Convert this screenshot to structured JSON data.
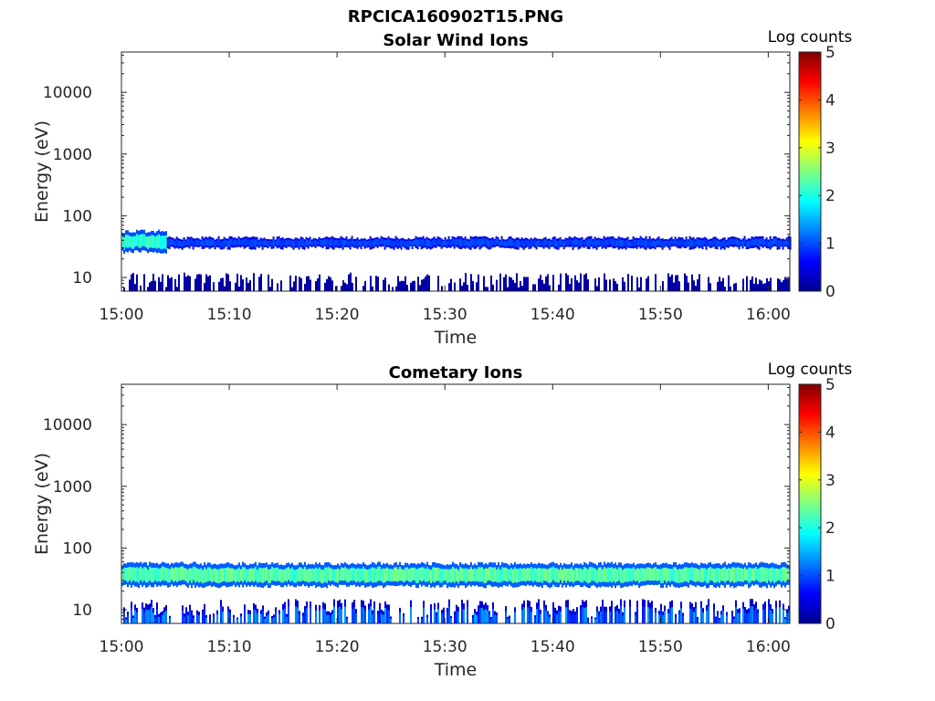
{
  "figure_title": "RPCICA160902T15.PNG",
  "chart_data": [
    {
      "type": "heatmap",
      "title": "Solar Wind Ions",
      "xlabel": "Time",
      "ylabel": "Energy (eV)",
      "x_ticks": [
        "15:00",
        "15:10",
        "15:20",
        "15:30",
        "15:40",
        "15:50",
        "16:00"
      ],
      "xlim_minutes": [
        0,
        62
      ],
      "y_scale": "log",
      "ylim": [
        6,
        45000
      ],
      "y_ticks": [
        {
          "value": 10,
          "label": "10"
        },
        {
          "value": 100,
          "label": "100"
        },
        {
          "value": 1000,
          "label": "1000"
        },
        {
          "value": 10000,
          "label": "10000"
        }
      ],
      "colorbar": {
        "label": "Log counts",
        "range": [
          0,
          5
        ],
        "ticks": [
          "0",
          "1",
          "2",
          "3",
          "4",
          "5"
        ],
        "colormap": "jet"
      },
      "features": [
        {
          "name": "solar wind beam",
          "t_start_min": 0,
          "t_end_min": 4.2,
          "e_low": 26,
          "e_high": 56,
          "log_counts": 2.2
        },
        {
          "name": "solar wind beam",
          "t_start_min": 4.2,
          "t_end_min": 62,
          "e_low": 30,
          "e_high": 44,
          "log_counts": 1.0
        },
        {
          "name": "low energy ions",
          "t_start_min": 0,
          "t_end_min": 62,
          "e_low": 6,
          "e_high": 12,
          "log_counts": 0.4
        }
      ]
    },
    {
      "type": "heatmap",
      "title": "Cometary Ions",
      "xlabel": "Time",
      "ylabel": "Energy (eV)",
      "x_ticks": [
        "15:00",
        "15:10",
        "15:20",
        "15:30",
        "15:40",
        "15:50",
        "16:00"
      ],
      "xlim_minutes": [
        0,
        62
      ],
      "y_scale": "log",
      "ylim": [
        6,
        45000
      ],
      "y_ticks": [
        {
          "value": 10,
          "label": "10"
        },
        {
          "value": 100,
          "label": "100"
        },
        {
          "value": 1000,
          "label": "1000"
        },
        {
          "value": 10000,
          "label": "10000"
        }
      ],
      "colorbar": {
        "label": "Log counts",
        "range": [
          0,
          5
        ],
        "ticks": [
          "0",
          "1",
          "2",
          "3",
          "4",
          "5"
        ],
        "colormap": "jet"
      },
      "features": [
        {
          "name": "ion band",
          "t_start_min": 0,
          "t_end_min": 62,
          "e_low": 24,
          "e_high": 56,
          "log_counts": 2.4
        },
        {
          "name": "low energy ions",
          "t_start_min": 0,
          "t_end_min": 62,
          "e_low": 6,
          "e_high": 15,
          "log_counts": 0.9
        }
      ]
    }
  ]
}
